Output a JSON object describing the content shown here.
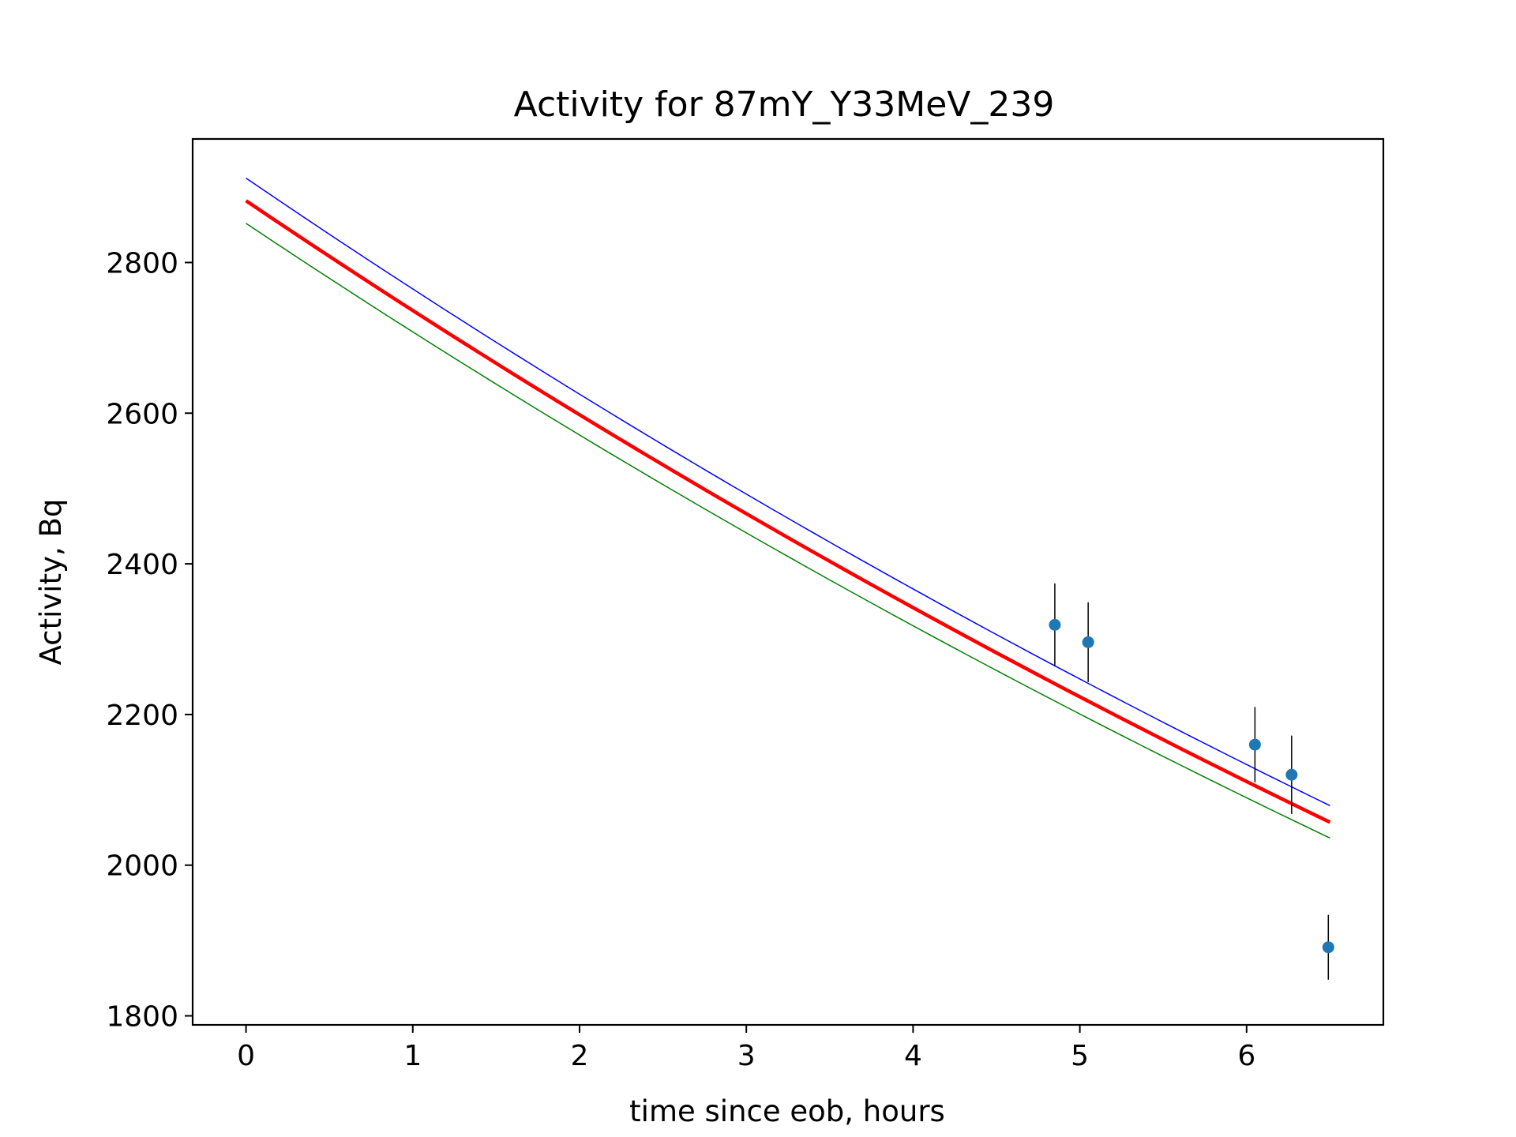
{
  "chart_data": {
    "type": "line",
    "title": "Activity for 87mY_Y33MeV_239",
    "xlabel": "time since eob, hours",
    "ylabel": "Activity, Bq",
    "xlim": [
      -0.32,
      6.82
    ],
    "ylim": [
      1788,
      2964
    ],
    "xticks": [
      0,
      1,
      2,
      3,
      4,
      5,
      6
    ],
    "yticks": [
      1800,
      2000,
      2200,
      2400,
      2600,
      2800
    ],
    "xtick_labels": [
      "0",
      "1",
      "2",
      "3",
      "4",
      "5",
      "6"
    ],
    "ytick_labels": [
      "1800",
      "2000",
      "2200",
      "2400",
      "2600",
      "2800"
    ],
    "grid": false,
    "series": [
      {
        "kind": "line",
        "color": "#0000ff",
        "x_start": 0,
        "x_end": 6.5,
        "y_start": 2912,
        "y_end": 2079,
        "curvature": 0.0234
      },
      {
        "kind": "line",
        "color": "#ff0000",
        "x_start": 0,
        "x_end": 6.5,
        "y_start": 2882,
        "y_end": 2057,
        "curvature": 0.0234
      },
      {
        "kind": "line",
        "color": "#008000",
        "x_start": 0,
        "x_end": 6.5,
        "y_start": 2852,
        "y_end": 2036,
        "curvature": 0.0234
      },
      {
        "kind": "errorbar",
        "color": "#1f77b4",
        "ecolor": "#000000",
        "points": [
          {
            "x": 4.85,
            "y": 2319,
            "yerr": 55
          },
          {
            "x": 5.05,
            "y": 2296,
            "yerr": 53
          },
          {
            "x": 6.05,
            "y": 2160,
            "yerr": 50
          },
          {
            "x": 6.27,
            "y": 2120,
            "yerr": 52
          },
          {
            "x": 6.49,
            "y": 1891,
            "yerr": 43
          }
        ]
      }
    ]
  }
}
